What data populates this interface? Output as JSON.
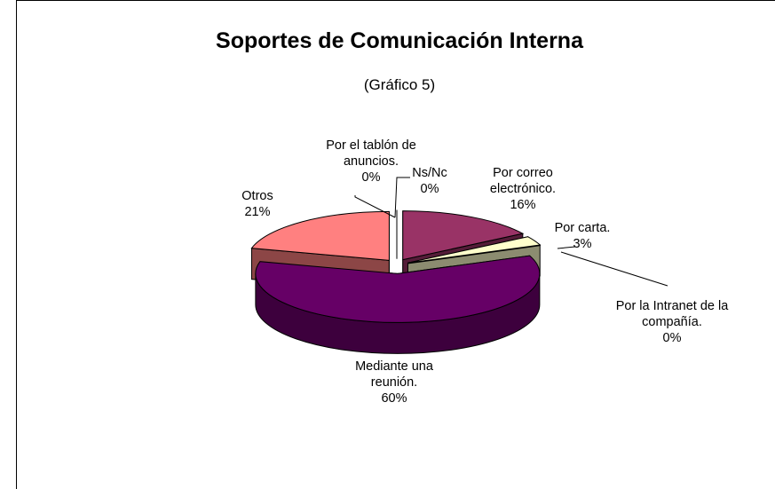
{
  "chart_data": {
    "type": "pie",
    "title": "Soportes de Comunicación Interna",
    "subtitle": "(Gráfico 5)",
    "categories": [
      "Por correo electrónico.",
      "Por carta.",
      "Por la Intranet de la compañía.",
      "Mediante una reunión.",
      "Otros",
      "Por el tablón de anuncios.",
      "Ns/Nc"
    ],
    "values": [
      16,
      3,
      0,
      60,
      21,
      0,
      0
    ],
    "value_labels": [
      "16%",
      "3%",
      "0%",
      "60%",
      "21%",
      "0%",
      "0%"
    ],
    "colors": [
      "#993366",
      "#ffffcc",
      "#669999",
      "#660066",
      "#ff8080",
      "#ccffff",
      "#000080"
    ],
    "exploded": true,
    "three_d": true
  }
}
